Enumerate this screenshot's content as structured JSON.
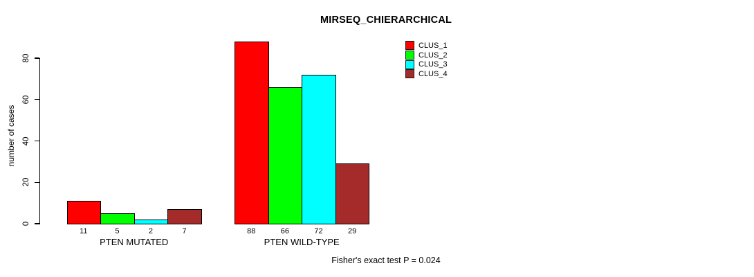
{
  "chart_data": {
    "type": "bar",
    "title": "MIRSEQ_CHIERARCHICAL",
    "xlabel": "",
    "ylabel": "number of cases",
    "ylim": [
      0,
      80
    ],
    "yticks": [
      0,
      20,
      40,
      60,
      80
    ],
    "grid": false,
    "legend_position": "top-right",
    "categories": [
      "PTEN MUTATED",
      "PTEN WILD-TYPE"
    ],
    "series": [
      {
        "name": "CLUS_1",
        "color": "#ff0000",
        "values": [
          11,
          88
        ]
      },
      {
        "name": "CLUS_2",
        "color": "#00ff00",
        "values": [
          5,
          66
        ]
      },
      {
        "name": "CLUS_3",
        "color": "#00ffff",
        "values": [
          2,
          72
        ]
      },
      {
        "name": "CLUS_4",
        "color": "#a52a2a",
        "values": [
          7,
          29
        ]
      }
    ],
    "bar_value_labels": {
      "PTEN MUTATED": [
        11,
        5,
        2,
        7
      ],
      "PTEN WILD-TYPE": [
        88,
        66,
        72,
        29
      ]
    },
    "annotation": "Fisher's exact test P = 0.024"
  }
}
